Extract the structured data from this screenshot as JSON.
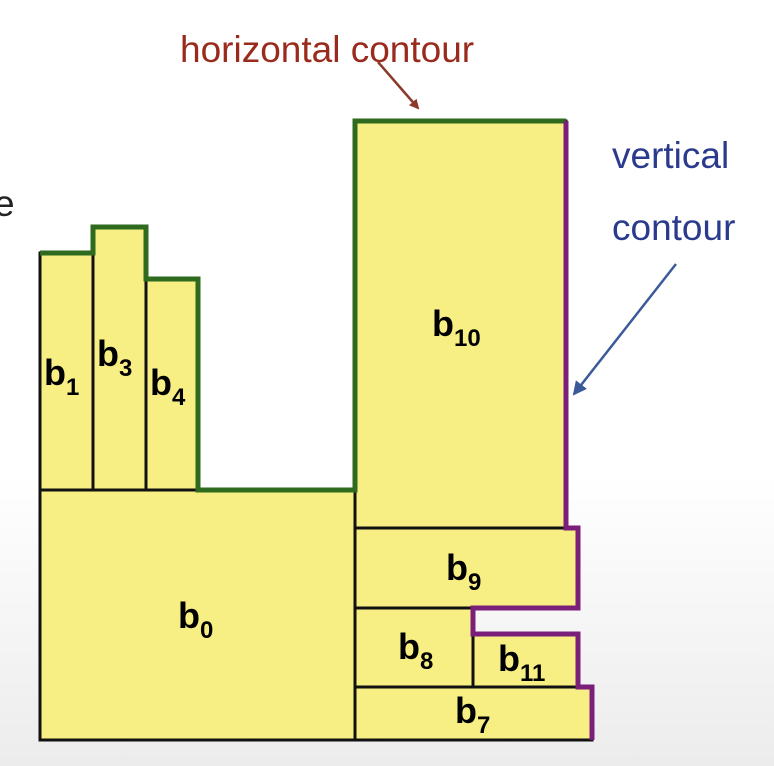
{
  "annotations": {
    "horizontal_label": "horizontal contour",
    "vertical_line1": "vertical",
    "vertical_line2": "contour",
    "edge_fragment": "e"
  },
  "colors": {
    "block_fill": "#f7ef83",
    "block_stroke": "#111111",
    "horizontal_contour": "#2e6b1e",
    "vertical_contour": "#7a1f7a",
    "horizontal_label": "#9a2a1c",
    "vertical_label": "#2a3a8c",
    "arrow": "#8a3a2a",
    "arrow_vertical": "#3a5a9a"
  },
  "blocks": [
    {
      "id": "b0",
      "main": "b",
      "sub": "0"
    },
    {
      "id": "b1",
      "main": "b",
      "sub": "1"
    },
    {
      "id": "b3",
      "main": "b",
      "sub": "3"
    },
    {
      "id": "b4",
      "main": "b",
      "sub": "4"
    },
    {
      "id": "b10",
      "main": "b",
      "sub": "10"
    },
    {
      "id": "b9",
      "main": "b",
      "sub": "9"
    },
    {
      "id": "b8",
      "main": "b",
      "sub": "8"
    },
    {
      "id": "b11",
      "main": "b",
      "sub": "11"
    },
    {
      "id": "b7",
      "main": "b",
      "sub": "7"
    }
  ]
}
